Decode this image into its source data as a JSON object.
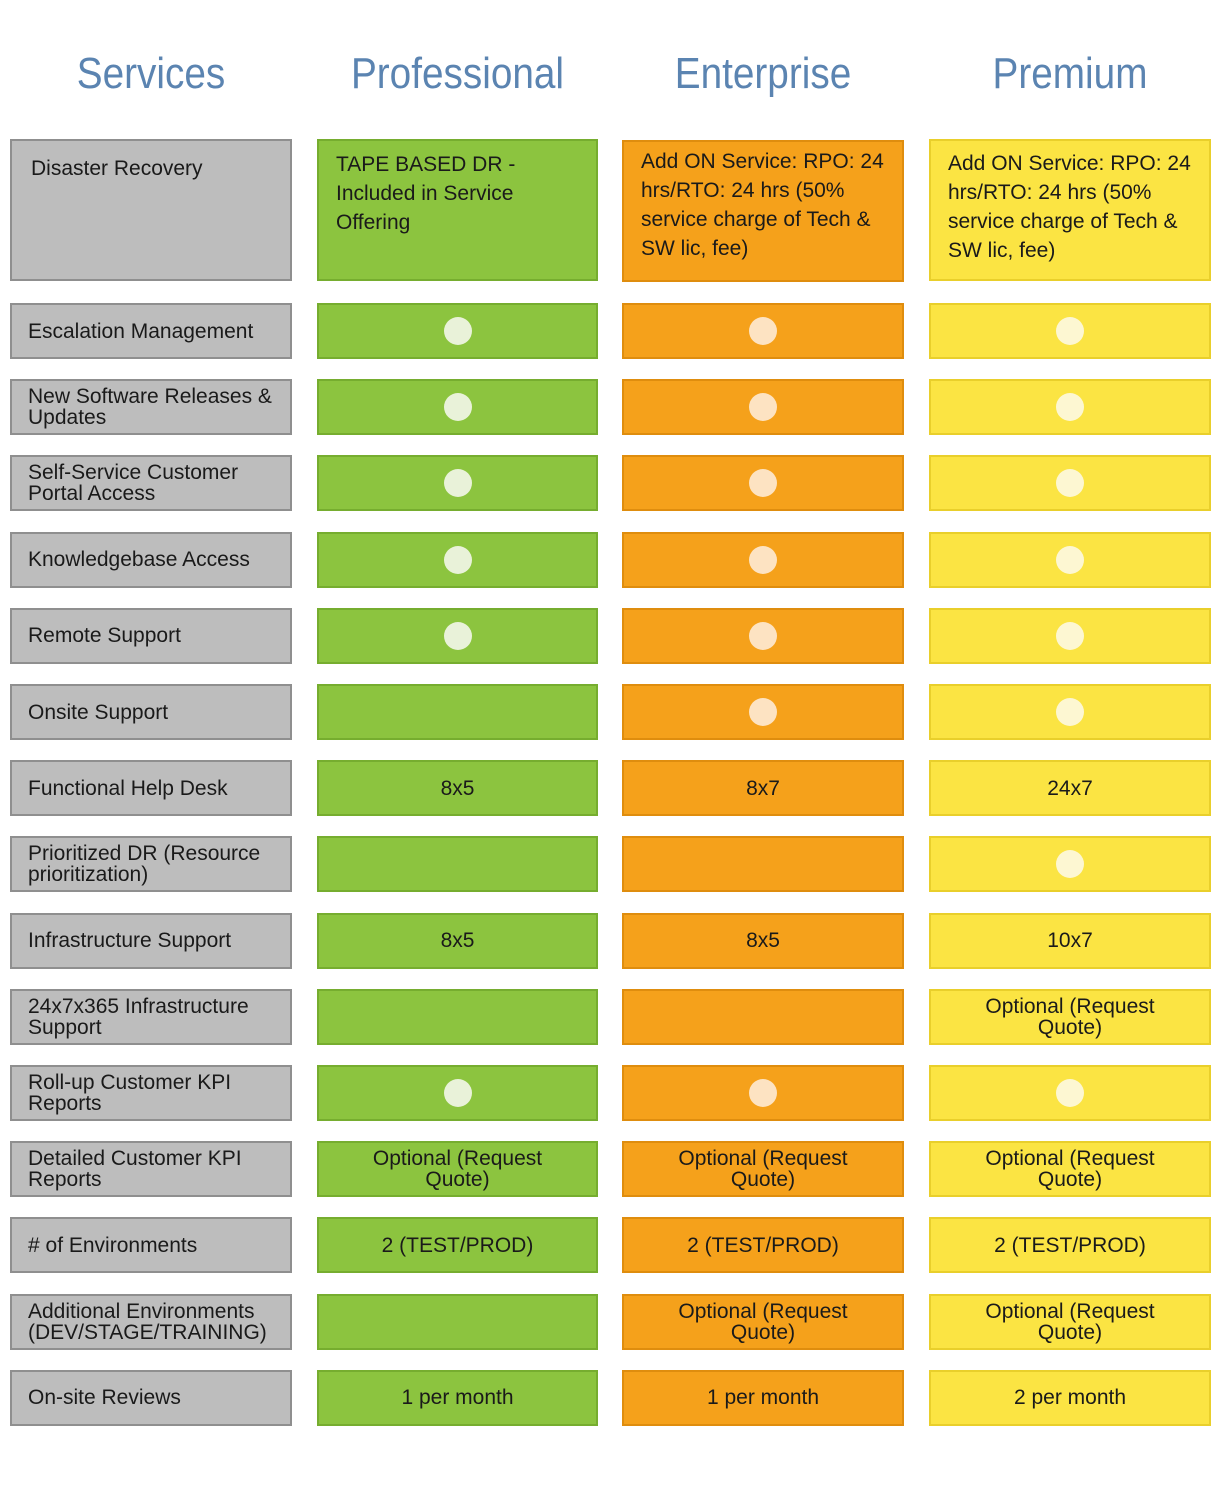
{
  "headers": [
    "Services",
    "Professional",
    "Enterprise",
    "Premium"
  ],
  "top_row": {
    "service": "Disaster Recovery",
    "professional": "TAPE BASED DR - Included in Service Offering",
    "enterprise": "Add ON Service: RPO: 24 hrs/RTO: 24  hrs (50% service charge of Tech & SW lic, fee)",
    "premium": "Add ON Service: RPO: 24 hrs/RTO: 24  hrs (50% service charge of Tech & SW lic, fee)"
  },
  "rows": [
    {
      "service": "Escalation Management",
      "professional": {
        "dot": true
      },
      "enterprise": {
        "dot": true
      },
      "premium": {
        "dot": true
      }
    },
    {
      "service": "New Software Releases & Updates",
      "professional": {
        "dot": true
      },
      "enterprise": {
        "dot": true
      },
      "premium": {
        "dot": true
      }
    },
    {
      "service": "Self-Service Customer Portal Access",
      "professional": {
        "dot": true
      },
      "enterprise": {
        "dot": true
      },
      "premium": {
        "dot": true
      }
    },
    {
      "service": "Knowledgebase Access",
      "professional": {
        "dot": true
      },
      "enterprise": {
        "dot": true
      },
      "premium": {
        "dot": true
      }
    },
    {
      "service": "Remote Support",
      "professional": {
        "dot": true
      },
      "enterprise": {
        "dot": true
      },
      "premium": {
        "dot": true
      }
    },
    {
      "service": "Onsite Support",
      "professional": {},
      "enterprise": {
        "dot": true
      },
      "premium": {
        "dot": true
      }
    },
    {
      "service": "Functional Help Desk",
      "professional": {
        "text": "8x5"
      },
      "enterprise": {
        "text": "8x7"
      },
      "premium": {
        "text": "24x7"
      }
    },
    {
      "service": "Prioritized DR (Resource prioritization)",
      "professional": {},
      "enterprise": {},
      "premium": {
        "dot": true
      }
    },
    {
      "service": "Infrastructure Support",
      "professional": {
        "text": "8x5"
      },
      "enterprise": {
        "text": "8x5"
      },
      "premium": {
        "text": "10x7"
      }
    },
    {
      "service": "24x7x365 Infrastructure Support",
      "professional": {},
      "enterprise": {},
      "premium": {
        "text": "Optional (Request Quote)"
      }
    },
    {
      "service": "Roll-up Customer KPI Reports",
      "professional": {
        "dot": true
      },
      "enterprise": {
        "dot": true
      },
      "premium": {
        "dot": true
      }
    },
    {
      "service": "Detailed Customer KPI Reports",
      "professional": {
        "text": "Optional (Request Quote)"
      },
      "enterprise": {
        "text": "Optional (Request Quote)"
      },
      "premium": {
        "text": "Optional (Request Quote)"
      }
    },
    {
      "service": "# of Environments",
      "professional": {
        "text": "2 (TEST/PROD)"
      },
      "enterprise": {
        "text": "2 (TEST/PROD)"
      },
      "premium": {
        "text": "2 (TEST/PROD)"
      }
    },
    {
      "service": "Additional Environments (DEV/STAGE/TRAINING)",
      "professional": {},
      "enterprise": {
        "text": "Optional (Request Quote)"
      },
      "premium": {
        "text": "Optional (Request Quote)"
      }
    },
    {
      "service": "On-site Reviews",
      "professional": {
        "text": "1 per month"
      },
      "enterprise": {
        "text": "1 per month"
      },
      "premium": {
        "text": "2 per month"
      }
    }
  ],
  "colors": {
    "header_text": "#5b84b1",
    "services": "#bdbdbd",
    "professional": "#8cc43f",
    "enterprise": "#f5a11b",
    "premium": "#fbe443"
  }
}
